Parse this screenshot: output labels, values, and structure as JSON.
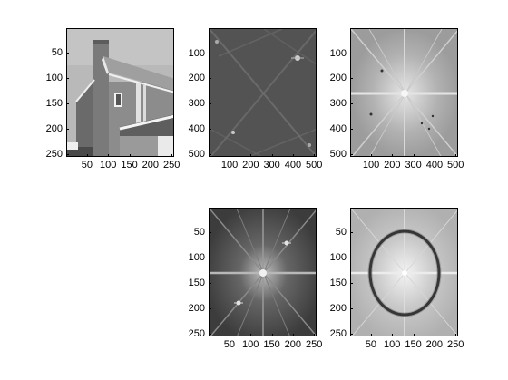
{
  "panels": [
    {
      "id": "house-image",
      "content": "grayscale house photo",
      "xticks": [
        "50",
        "100",
        "150",
        "200",
        "250"
      ],
      "yticks": [
        "50",
        "100",
        "150",
        "200",
        "250"
      ],
      "xrange": [
        1,
        256
      ],
      "yrange": [
        1,
        256
      ],
      "xtick_values": [
        50,
        100,
        150,
        200,
        250
      ],
      "ytick_values": [
        50,
        100,
        150,
        200,
        250
      ]
    },
    {
      "id": "fft-magnitude-512",
      "content": "dark fft magnitude spectrum",
      "xticks": [
        "100",
        "200",
        "300",
        "400",
        "500"
      ],
      "yticks": [
        "100",
        "200",
        "300",
        "400",
        "500"
      ],
      "xrange": [
        1,
        512
      ],
      "yrange": [
        1,
        512
      ],
      "xtick_values": [
        100,
        200,
        300,
        400,
        500
      ],
      "ytick_values": [
        100,
        200,
        300,
        400,
        500
      ]
    },
    {
      "id": "fft-shifted-512",
      "content": "light centered fft spectrum",
      "xticks": [
        "100",
        "200",
        "300",
        "400",
        "500"
      ],
      "yticks": [
        "100",
        "200",
        "300",
        "400",
        "500"
      ],
      "xrange": [
        1,
        512
      ],
      "yrange": [
        1,
        512
      ],
      "xtick_values": [
        100,
        200,
        300,
        400,
        500
      ],
      "ytick_values": [
        100,
        200,
        300,
        400,
        500
      ]
    },
    {
      "id": "fft-centered-256",
      "content": "dark centered fft spectrum",
      "xticks": [
        "50",
        "100",
        "150",
        "200",
        "250"
      ],
      "yticks": [
        "50",
        "100",
        "150",
        "200",
        "250"
      ],
      "xrange": [
        1,
        256
      ],
      "yrange": [
        1,
        256
      ],
      "xtick_values": [
        50,
        100,
        150,
        200,
        250
      ],
      "ytick_values": [
        50,
        100,
        150,
        200,
        250
      ]
    },
    {
      "id": "fft-filtered-ring-256",
      "content": "light spectrum with dark ring",
      "xticks": [
        "50",
        "100",
        "150",
        "200",
        "250"
      ],
      "yticks": [
        "50",
        "100",
        "150",
        "200",
        "250"
      ],
      "xrange": [
        1,
        256
      ],
      "yrange": [
        1,
        256
      ],
      "xtick_values": [
        50,
        100,
        150,
        200,
        250
      ],
      "ytick_values": [
        50,
        100,
        150,
        200,
        250
      ]
    }
  ]
}
